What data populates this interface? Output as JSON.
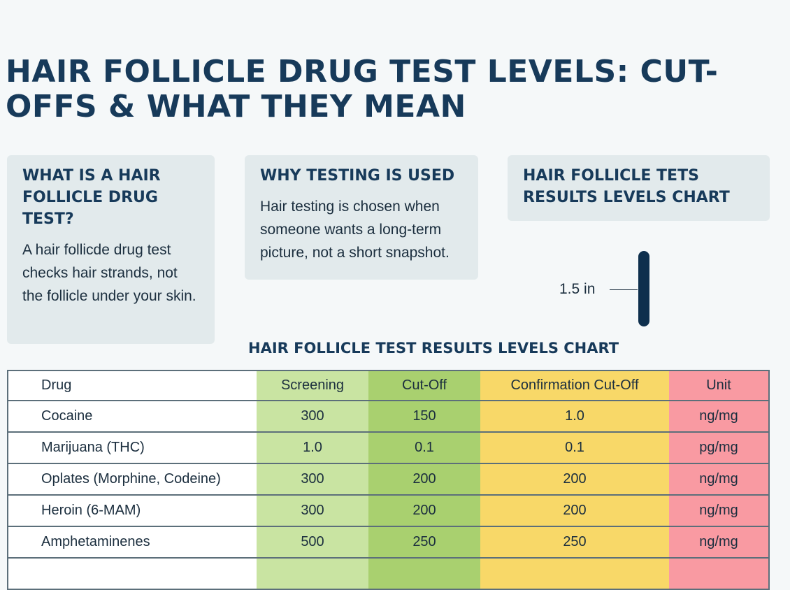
{
  "title": "HAIR FOLLICLE DRUG TEST LEVELS: CUT-OFFS & WHAT THEY MEAN",
  "cards": [
    {
      "heading": "WHAT IS A HAIR FOLLICLE DRUG TEST?",
      "body": "A hair follicde drug test checks hair strands, not the follicle under your skin."
    },
    {
      "heading": "WHY TESTING IS USED",
      "body": "Hair testing is chosen when someone wants a long-term picture, not a short snapshot."
    },
    {
      "heading": "HAIR FOLLICLE TETS RESULTS LEVELS CHART",
      "body": ""
    }
  ],
  "ruler": {
    "label": "1.5 in"
  },
  "table": {
    "title": "HAIR FOLLICLE TEST RESULTS LEVELS CHART",
    "headers": [
      "Drug",
      "Screening",
      "Cut-Off",
      "Confirmation Cut-Off",
      "Unit"
    ],
    "rows": [
      [
        "Cocaine",
        "300",
        "150",
        "1.0",
        "ng/mg"
      ],
      [
        "Marijuana (THC)",
        "1.0",
        "0.1",
        "0.1",
        "pg/mg"
      ],
      [
        "Oplates (Morphine, Codeine)",
        "300",
        "200",
        "200",
        "ng/mg"
      ],
      [
        "Heroin (6-MAM)",
        "300",
        "200",
        "200",
        "ng/mg"
      ],
      [
        "Amphetaminenes",
        "500",
        "250",
        "250",
        "ng/mg"
      ]
    ],
    "colors": {
      "screening": "#c9e4a2",
      "cutoff": "#a9d06f",
      "confirmation": "#f8d868",
      "unit": "#f99aa2"
    }
  }
}
